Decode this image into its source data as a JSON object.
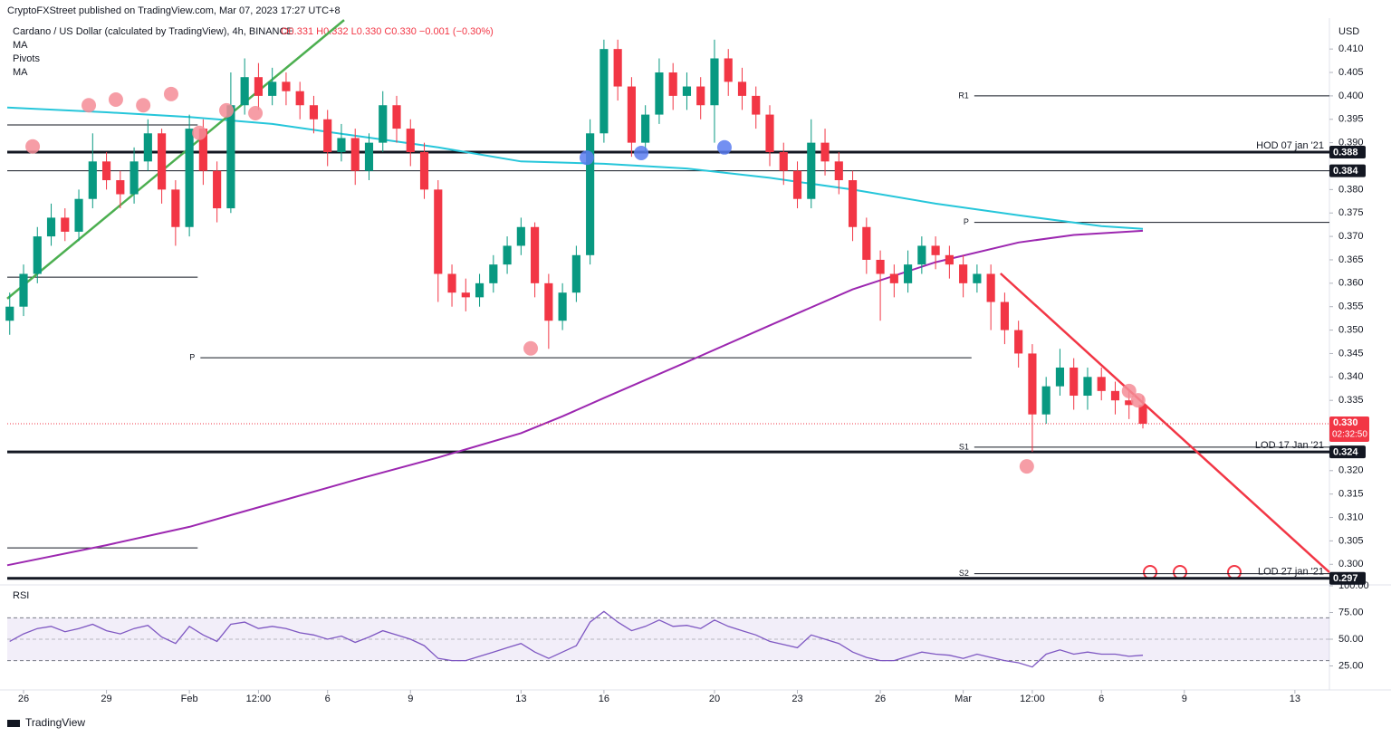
{
  "header": {
    "published": "CryptoFXStreet published on TradingView.com, Mar 07, 2023 17:27 UTC+8",
    "symbol": "Cardano / US Dollar (calculated by TradingView), 4h, BINANCE",
    "ohlc": "O0.331 H0.332 L0.330 C0.330 −0.001 (−0.30%)",
    "indicators": [
      "MA",
      "Pivots",
      "MA"
    ],
    "currency": "USD",
    "footer": "TradingView"
  },
  "chart_data": [
    {
      "type": "candlestick",
      "xlim": [
        -0.59,
        47.25
      ],
      "xticks": [
        {
          "value": 0,
          "label": "26"
        },
        {
          "value": 3,
          "label": "29"
        },
        {
          "value": 6,
          "label": "Feb"
        },
        {
          "value": 8.5,
          "label": "12:00"
        },
        {
          "value": 11,
          "label": "6"
        },
        {
          "value": 14,
          "label": "9"
        },
        {
          "value": 18,
          "label": "13"
        },
        {
          "value": 21,
          "label": "16"
        },
        {
          "value": 25,
          "label": "20"
        },
        {
          "value": 28,
          "label": "23"
        },
        {
          "value": 31,
          "label": "26"
        },
        {
          "value": 34,
          "label": "Mar"
        },
        {
          "value": 36.5,
          "label": "12:00"
        },
        {
          "value": 39,
          "label": "6"
        },
        {
          "value": 42,
          "label": "9"
        },
        {
          "value": 46,
          "label": "13"
        }
      ],
      "ylim": [
        0.2958,
        0.4166
      ],
      "yticks": [
        {
          "value": 0.41,
          "label": "0.410"
        },
        0.405,
        {
          "value": 0.4,
          "label": "0.400"
        },
        0.395,
        {
          "value": 0.39,
          "label": "0.390"
        },
        {
          "value": 0.38,
          "label": "0.380"
        },
        0.375,
        {
          "value": 0.37,
          "label": "0.370"
        },
        0.365,
        {
          "value": 0.36,
          "label": "0.360"
        },
        0.355,
        {
          "value": 0.35,
          "label": "0.350"
        },
        0.345,
        {
          "value": 0.34,
          "label": "0.340"
        },
        0.335,
        {
          "value": 0.32,
          "label": "0.320"
        },
        0.315,
        {
          "value": 0.31,
          "label": "0.310"
        },
        0.305,
        {
          "value": 0.3,
          "label": "0.300"
        }
      ],
      "grid": false,
      "up_color": "#089981",
      "down_color": "#f23645",
      "candles": [
        [
          -0.5,
          0.352,
          0.358,
          0.349,
          0.355
        ],
        [
          0,
          0.355,
          0.364,
          0.353,
          0.362
        ],
        [
          0.5,
          0.362,
          0.372,
          0.36,
          0.37
        ],
        [
          1,
          0.37,
          0.377,
          0.368,
          0.374
        ],
        [
          1.5,
          0.374,
          0.376,
          0.369,
          0.371
        ],
        [
          2,
          0.371,
          0.38,
          0.369,
          0.378
        ],
        [
          2.5,
          0.378,
          0.392,
          0.376,
          0.386
        ],
        [
          3,
          0.386,
          0.388,
          0.38,
          0.382
        ],
        [
          3.5,
          0.382,
          0.384,
          0.376,
          0.379
        ],
        [
          4,
          0.379,
          0.389,
          0.377,
          0.386
        ],
        [
          4.5,
          0.386,
          0.395,
          0.384,
          0.392
        ],
        [
          5,
          0.392,
          0.393,
          0.377,
          0.38
        ],
        [
          5.5,
          0.38,
          0.382,
          0.368,
          0.372
        ],
        [
          6,
          0.372,
          0.396,
          0.37,
          0.393
        ],
        [
          6.5,
          0.393,
          0.395,
          0.381,
          0.384
        ],
        [
          7,
          0.384,
          0.386,
          0.373,
          0.376
        ],
        [
          7.5,
          0.376,
          0.405,
          0.375,
          0.398
        ],
        [
          8,
          0.398,
          0.408,
          0.396,
          0.404
        ],
        [
          8.5,
          0.404,
          0.407,
          0.397,
          0.4
        ],
        [
          9,
          0.4,
          0.406,
          0.398,
          0.403
        ],
        [
          9.5,
          0.403,
          0.405,
          0.398,
          0.401
        ],
        [
          10,
          0.401,
          0.403,
          0.395,
          0.398
        ],
        [
          10.5,
          0.398,
          0.4,
          0.392,
          0.395
        ],
        [
          11,
          0.395,
          0.397,
          0.385,
          0.388
        ],
        [
          11.5,
          0.388,
          0.394,
          0.386,
          0.391
        ],
        [
          12,
          0.391,
          0.393,
          0.381,
          0.384
        ],
        [
          12.5,
          0.384,
          0.392,
          0.382,
          0.39
        ],
        [
          13,
          0.39,
          0.401,
          0.388,
          0.398
        ],
        [
          13.5,
          0.398,
          0.4,
          0.39,
          0.393
        ],
        [
          14,
          0.393,
          0.395,
          0.385,
          0.388
        ],
        [
          14.5,
          0.388,
          0.39,
          0.378,
          0.38
        ],
        [
          15,
          0.38,
          0.382,
          0.356,
          0.362
        ],
        [
          15.5,
          0.362,
          0.364,
          0.355,
          0.358
        ],
        [
          16,
          0.358,
          0.361,
          0.354,
          0.357
        ],
        [
          16.5,
          0.357,
          0.362,
          0.355,
          0.36
        ],
        [
          17,
          0.36,
          0.366,
          0.358,
          0.364
        ],
        [
          17.5,
          0.364,
          0.37,
          0.362,
          0.368
        ],
        [
          18,
          0.368,
          0.374,
          0.366,
          0.372
        ],
        [
          18.5,
          0.372,
          0.373,
          0.357,
          0.36
        ],
        [
          19,
          0.36,
          0.362,
          0.346,
          0.352
        ],
        [
          19.5,
          0.352,
          0.36,
          0.35,
          0.358
        ],
        [
          20,
          0.358,
          0.368,
          0.356,
          0.366
        ],
        [
          20.5,
          0.366,
          0.395,
          0.364,
          0.392
        ],
        [
          21,
          0.392,
          0.412,
          0.39,
          0.41
        ],
        [
          21.5,
          0.41,
          0.412,
          0.399,
          0.402
        ],
        [
          22,
          0.402,
          0.404,
          0.387,
          0.39
        ],
        [
          22.5,
          0.39,
          0.398,
          0.388,
          0.396
        ],
        [
          23,
          0.396,
          0.408,
          0.394,
          0.405
        ],
        [
          23.5,
          0.405,
          0.407,
          0.397,
          0.4
        ],
        [
          24,
          0.4,
          0.405,
          0.397,
          0.402
        ],
        [
          24.5,
          0.402,
          0.404,
          0.395,
          0.398
        ],
        [
          25,
          0.398,
          0.412,
          0.39,
          0.408
        ],
        [
          25.5,
          0.408,
          0.41,
          0.4,
          0.403
        ],
        [
          26,
          0.403,
          0.406,
          0.397,
          0.4
        ],
        [
          26.5,
          0.4,
          0.402,
          0.393,
          0.396
        ],
        [
          27,
          0.396,
          0.398,
          0.385,
          0.388
        ],
        [
          27.5,
          0.388,
          0.39,
          0.381,
          0.384
        ],
        [
          28,
          0.384,
          0.386,
          0.376,
          0.378
        ],
        [
          28.5,
          0.378,
          0.395,
          0.376,
          0.39
        ],
        [
          29,
          0.39,
          0.393,
          0.383,
          0.386
        ],
        [
          29.5,
          0.386,
          0.388,
          0.379,
          0.382
        ],
        [
          30,
          0.382,
          0.384,
          0.369,
          0.372
        ],
        [
          30.5,
          0.372,
          0.374,
          0.362,
          0.365
        ],
        [
          31,
          0.365,
          0.367,
          0.352,
          0.362
        ],
        [
          31.5,
          0.362,
          0.364,
          0.357,
          0.36
        ],
        [
          32,
          0.36,
          0.367,
          0.358,
          0.364
        ],
        [
          32.5,
          0.364,
          0.37,
          0.362,
          0.368
        ],
        [
          33,
          0.368,
          0.37,
          0.363,
          0.366
        ],
        [
          33.5,
          0.366,
          0.368,
          0.361,
          0.364
        ],
        [
          34,
          0.364,
          0.366,
          0.357,
          0.36
        ],
        [
          34.5,
          0.36,
          0.364,
          0.358,
          0.362
        ],
        [
          35,
          0.362,
          0.364,
          0.35,
          0.356
        ],
        [
          35.5,
          0.356,
          0.358,
          0.347,
          0.35
        ],
        [
          36,
          0.35,
          0.352,
          0.342,
          0.345
        ],
        [
          36.5,
          0.345,
          0.347,
          0.324,
          0.332
        ],
        [
          37,
          0.332,
          0.34,
          0.33,
          0.338
        ],
        [
          37.5,
          0.338,
          0.346,
          0.336,
          0.342
        ],
        [
          38,
          0.342,
          0.344,
          0.333,
          0.336
        ],
        [
          38.5,
          0.336,
          0.342,
          0.333,
          0.34
        ],
        [
          39,
          0.34,
          0.342,
          0.335,
          0.337
        ],
        [
          39.5,
          0.337,
          0.339,
          0.332,
          0.335
        ],
        [
          40,
          0.335,
          0.337,
          0.331,
          0.334
        ],
        [
          40.5,
          0.334,
          0.336,
          0.329,
          0.33
        ]
      ],
      "series": [
        {
          "color": "#26c6da",
          "x": [
            -0.59,
            3,
            6,
            9,
            12,
            15,
            18,
            21,
            24,
            27,
            30,
            33,
            36,
            39,
            40.5
          ],
          "values": [
            0.3975,
            0.3965,
            0.3955,
            0.394,
            0.3915,
            0.389,
            0.386,
            0.3855,
            0.3845,
            0.3825,
            0.38,
            0.377,
            0.3745,
            0.3722,
            0.3716
          ]
        },
        {
          "color": "#9c27b0",
          "x": [
            -0.59,
            3,
            6,
            9,
            12,
            15,
            18,
            19.5,
            21,
            24,
            27,
            30,
            33,
            36,
            38,
            40.5
          ],
          "values": [
            0.2998,
            0.3041,
            0.308,
            0.313,
            0.318,
            0.3228,
            0.328,
            0.3316,
            0.3355,
            0.3432,
            0.351,
            0.3587,
            0.3645,
            0.3687,
            0.3703,
            0.3712
          ]
        }
      ],
      "trendlines": [
        {
          "color": "#4caf50",
          "x": [
            -0.59,
            11.6
          ],
          "values": [
            0.3567,
            0.4162
          ]
        },
        {
          "color": "#f23645",
          "x": [
            35.35,
            47.25
          ],
          "values": [
            0.3621,
            0.2983
          ]
        }
      ],
      "levels": [
        {
          "value": 0.388,
          "label": "HOD 07 jan '21",
          "width": 3,
          "badge": true
        },
        {
          "value": 0.384,
          "width": 1,
          "badge": true
        },
        {
          "value": 0.324,
          "label": "LOD 17 Jan '21",
          "width": 3,
          "badge": true
        },
        {
          "value": 0.297,
          "label": "LOD 27 jan '21",
          "width": 3,
          "badge": true
        },
        {
          "value": 0.4,
          "pivot": "R1",
          "width": 1,
          "xrange": [
            34.4,
            47.25
          ]
        },
        {
          "value": 0.373,
          "pivot": "P",
          "width": 1,
          "xrange": [
            34.4,
            47.25
          ]
        },
        {
          "value": 0.325,
          "pivot": "S1",
          "width": 1,
          "xrange": [
            34.4,
            47.25
          ]
        },
        {
          "value": 0.298,
          "pivot": "S2",
          "width": 1,
          "xrange": [
            34.4,
            47.25
          ]
        },
        {
          "value": 0.3441,
          "pivot": "P",
          "width": 1,
          "xrange": [
            6.4,
            34.3
          ]
        },
        {
          "value": 0.3938,
          "width": 1,
          "xrange": [
            -0.59,
            6.3
          ]
        },
        {
          "value": 0.3613,
          "width": 1,
          "xrange": [
            -0.59,
            6.3
          ]
        },
        {
          "value": 0.3035,
          "width": 1,
          "xrange": [
            -0.59,
            6.3
          ]
        }
      ],
      "markers": [
        {
          "x": 0.33,
          "value": 0.3892,
          "color": "#f48c96"
        },
        {
          "x": 2.36,
          "value": 0.398,
          "color": "#f48c96"
        },
        {
          "x": 3.34,
          "value": 0.3992,
          "color": "#f48c96"
        },
        {
          "x": 4.33,
          "value": 0.398,
          "color": "#f48c96"
        },
        {
          "x": 5.34,
          "value": 0.4004,
          "color": "#f48c96"
        },
        {
          "x": 6.36,
          "value": 0.3921,
          "color": "#f48c96"
        },
        {
          "x": 7.34,
          "value": 0.3969,
          "color": "#f48c96"
        },
        {
          "x": 8.39,
          "value": 0.3963,
          "color": "#f48c96"
        },
        {
          "x": 18.35,
          "value": 0.3461,
          "color": "#f48c96"
        },
        {
          "x": 36.3,
          "value": 0.3209,
          "color": "#f48c96"
        },
        {
          "x": 40.0,
          "value": 0.337,
          "color": "#f48c96"
        },
        {
          "x": 40.33,
          "value": 0.335,
          "color": "#f48c96"
        },
        {
          "x": 20.38,
          "value": 0.3868,
          "color": "#5b7cf0"
        },
        {
          "x": 22.35,
          "value": 0.3878,
          "color": "#5b7cf0"
        },
        {
          "x": 25.36,
          "value": 0.389,
          "color": "#5b7cf0"
        }
      ],
      "last_price": {
        "value": 0.33,
        "label": "0.330",
        "countdown": "02:32:50",
        "color": "#f23645"
      }
    },
    {
      "type": "line",
      "title": "RSI",
      "ylim": [
        0,
        100
      ],
      "yticks": [
        {
          "value": 100,
          "label": "100.00"
        },
        {
          "value": 75,
          "label": "75.00"
        },
        {
          "value": 50,
          "label": "50.00"
        },
        {
          "value": 25,
          "label": "25.00"
        }
      ],
      "band": [
        30,
        70
      ],
      "color": "#7e57c2",
      "values": [
        48,
        55,
        60,
        62,
        57,
        60,
        64,
        58,
        55,
        60,
        63,
        52,
        46,
        62,
        54,
        48,
        64,
        66,
        60,
        62,
        60,
        56,
        54,
        50,
        53,
        47,
        52,
        58,
        54,
        50,
        44,
        32,
        30,
        30,
        34,
        38,
        42,
        46,
        38,
        32,
        38,
        44,
        66,
        76,
        66,
        58,
        62,
        68,
        62,
        63,
        60,
        68,
        62,
        58,
        54,
        48,
        45,
        42,
        54,
        50,
        46,
        38,
        33,
        30,
        30,
        34,
        38,
        36,
        35,
        32,
        36,
        33,
        30,
        28,
        24,
        36,
        40,
        36,
        38,
        36,
        36,
        34,
        35
      ]
    }
  ]
}
